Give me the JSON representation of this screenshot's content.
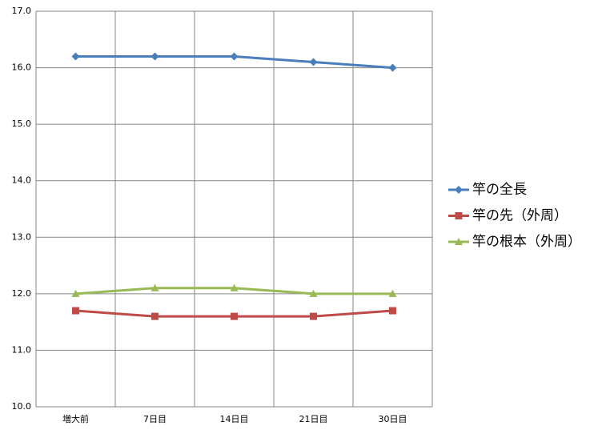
{
  "chart_data": {
    "type": "line",
    "categories": [
      "増大前",
      "7日目",
      "14日目",
      "21日目",
      "30日目"
    ],
    "series": [
      {
        "name": "竿の全長",
        "color": "#4a7ebb",
        "marker": "diamond",
        "values": [
          16.2,
          16.2,
          16.2,
          16.1,
          16.0
        ]
      },
      {
        "name": "竿の先（外周）",
        "color": "#be4b48",
        "marker": "square",
        "values": [
          11.7,
          11.6,
          11.6,
          11.6,
          11.7
        ]
      },
      {
        "name": "竿の根本（外周）",
        "color": "#98b954",
        "marker": "triangle",
        "values": [
          12.0,
          12.1,
          12.1,
          12.0,
          12.0
        ]
      }
    ],
    "ylim": [
      10,
      17
    ],
    "yticks": [
      {
        "value": 10,
        "label": "10.0"
      },
      {
        "value": 11,
        "label": "11.0"
      },
      {
        "value": 12,
        "label": "12.0"
      },
      {
        "value": 13,
        "label": "13.0"
      },
      {
        "value": 14,
        "label": "14.0"
      },
      {
        "value": 15,
        "label": "15.0"
      },
      {
        "value": 16,
        "label": "16.0"
      },
      {
        "value": 17,
        "label": "17.0"
      }
    ],
    "grid": true,
    "legend": "right"
  }
}
